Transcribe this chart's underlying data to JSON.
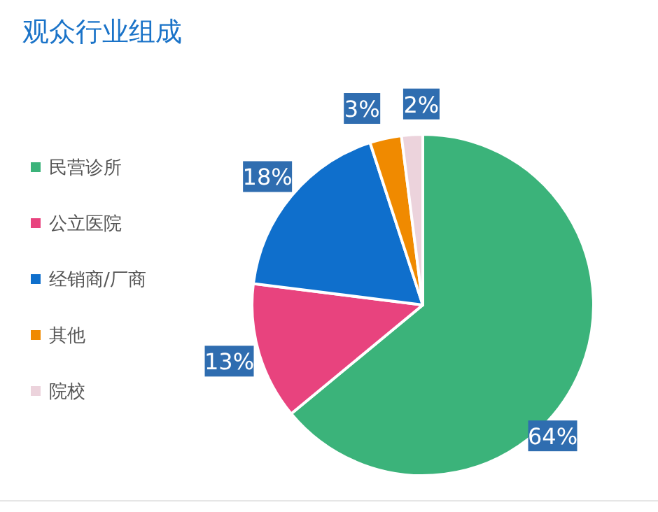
{
  "chart_data": {
    "type": "pie",
    "title": "观众行业组成",
    "categories": [
      "民营诊所",
      "公立医院",
      "经销商/厂商",
      "其他",
      "院校"
    ],
    "values": [
      64,
      13,
      18,
      3,
      2
    ],
    "colors": [
      "#3bb37a",
      "#e8437e",
      "#0f6fcc",
      "#f08a00",
      "#ecd3dc"
    ],
    "value_labels": [
      "64%",
      "13%",
      "18%",
      "3%",
      "2%"
    ],
    "legend": "left"
  }
}
